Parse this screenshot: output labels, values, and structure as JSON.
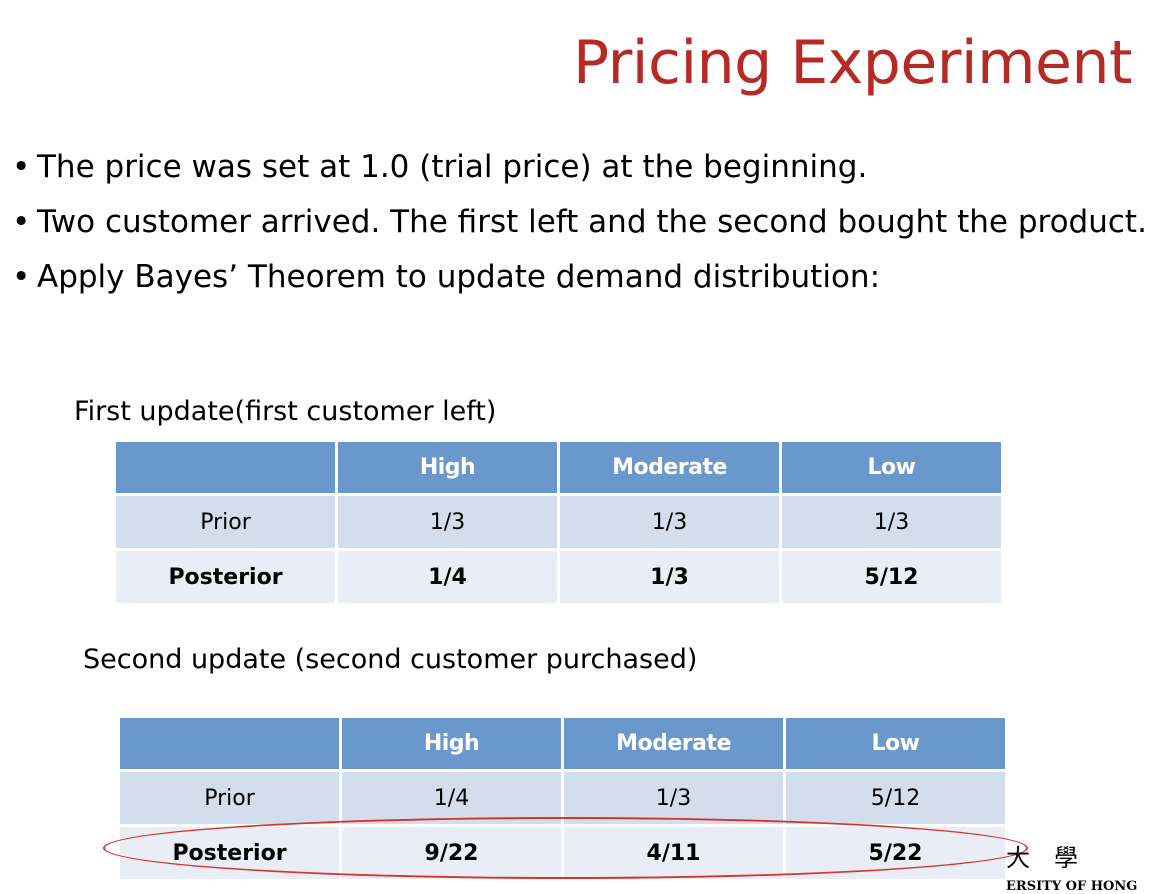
{
  "title": "Pricing Experiment",
  "bullets": [
    "The price was set at 1.0 (trial price) at the beginning.",
    "Two customer arrived. The first left and the second bought the product.",
    "Apply Bayes’ Theorem to update demand distribution:"
  ],
  "bullet_glyph": "•",
  "table1": {
    "caption": "First update(first customer left)",
    "headers": [
      "",
      "High",
      "Moderate",
      "Low"
    ],
    "rows": [
      [
        "Prior",
        "1/3",
        "1/3",
        "1/3"
      ],
      [
        "Posterior",
        "1/4",
        "1/3",
        "5/12"
      ]
    ]
  },
  "table2": {
    "caption": "Second update (second customer purchased)",
    "headers": [
      "",
      "High",
      "Moderate",
      "Low"
    ],
    "rows": [
      [
        "Prior",
        "1/4",
        "1/3",
        "5/12"
      ],
      [
        "Posterior",
        "9/22",
        "4/11",
        "5/22"
      ]
    ]
  },
  "highlight_color": "#d8342c",
  "logo": {
    "chars": "大學",
    "text": "ERSITY OF HONG"
  }
}
